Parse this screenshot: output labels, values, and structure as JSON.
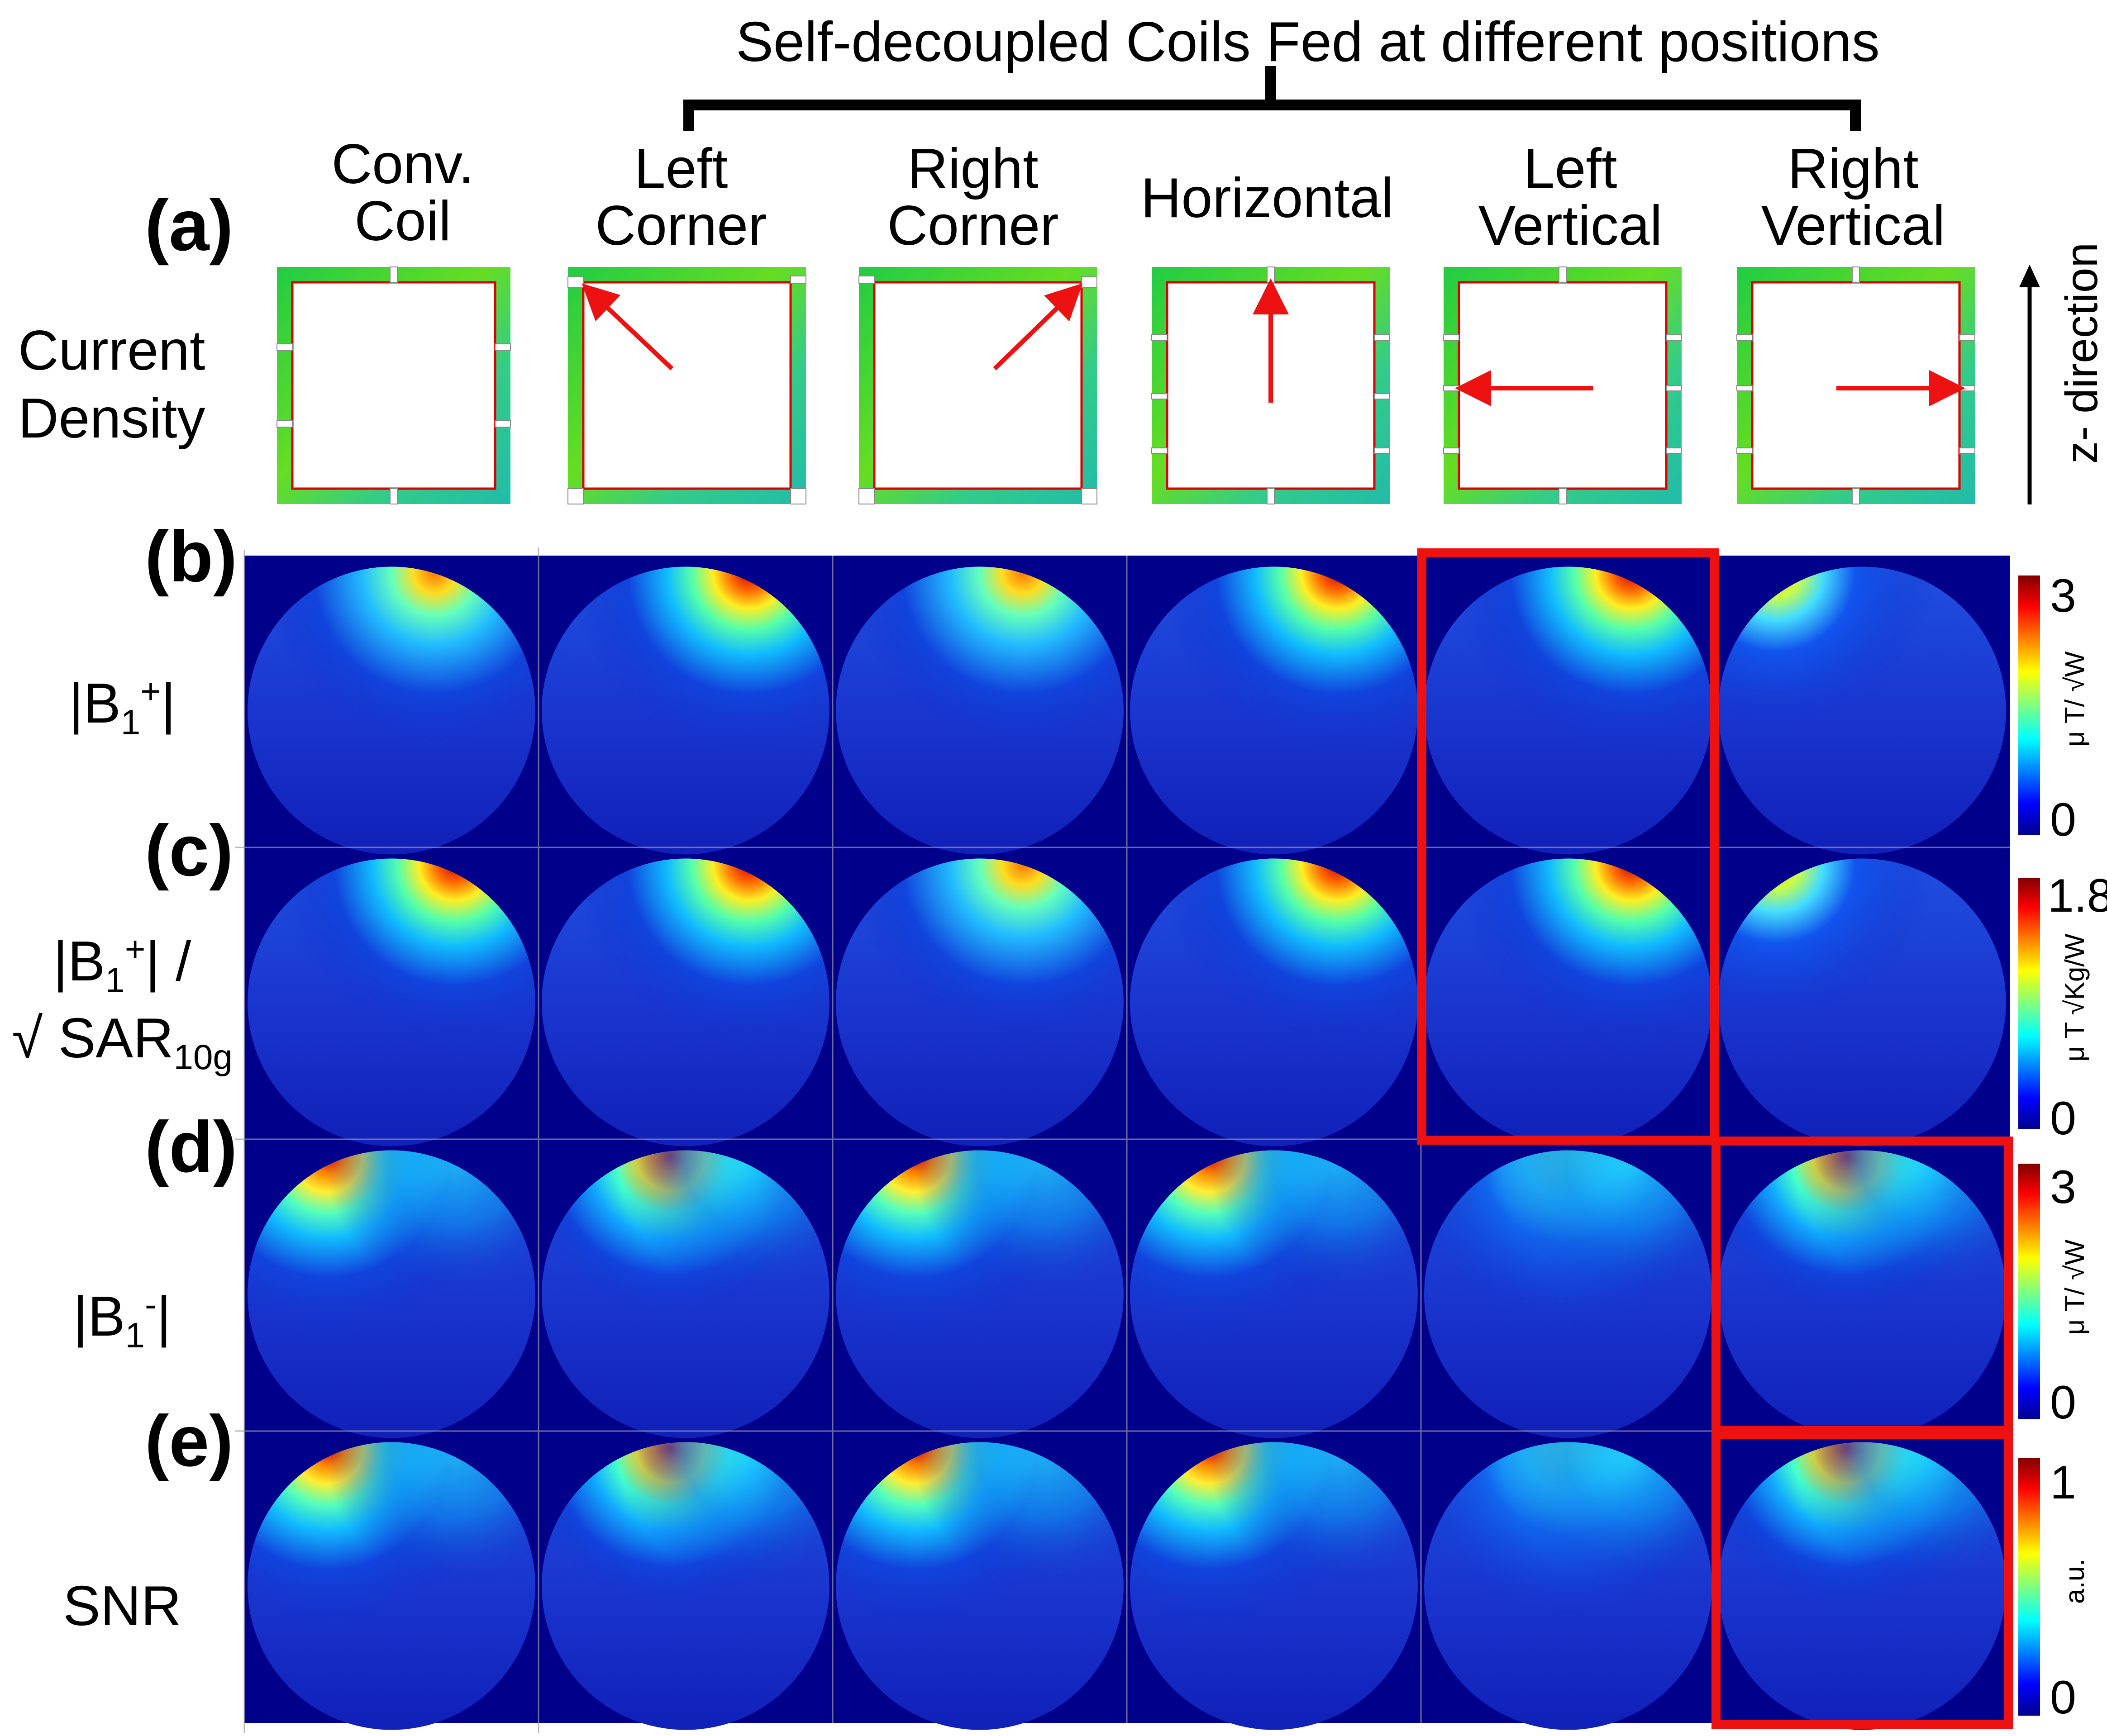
{
  "figure": {
    "top_title": "Self-decoupled Coils Fed at different positions",
    "columns": [
      {
        "line1": "Conv.",
        "line2": "Coil"
      },
      {
        "line1": "Left",
        "line2": "Corner"
      },
      {
        "line1": "Right",
        "line2": "Corner"
      },
      {
        "line1": "Horizontal",
        "line2": ""
      },
      {
        "line1": "Left",
        "line2": "Vertical"
      },
      {
        "line1": "Right",
        "line2": "Vertical"
      }
    ],
    "panel_labels": [
      "(a)",
      "(b)",
      "(c)",
      "(d)",
      "(e)"
    ],
    "row_labels": {
      "a_line1": "Current",
      "a_line2": "Density",
      "b_prefix": "|B",
      "b_sub": "1",
      "b_sup": "+",
      "b_suffix": "|",
      "c_line1_prefix": "|B",
      "c_line1_sub": "1",
      "c_line1_sup": "+",
      "c_line1_suffix": "| /",
      "c_line2_prefix": "√ SAR",
      "c_line2_sub": "10g",
      "d_prefix": "|B",
      "d_sub": "1",
      "d_sup": "-",
      "d_suffix": "|",
      "e": "SNR"
    },
    "z_direction_label": "z- direction",
    "colorbars": [
      {
        "max": "3",
        "min": "0",
        "unit": "μ T/ √W"
      },
      {
        "max": "1.8",
        "min": "0",
        "unit": "μ T √Kg/W"
      },
      {
        "max": "3",
        "min": "0",
        "unit": "μ T/ √W"
      },
      {
        "max": "1",
        "min": "0",
        "unit": "a.u."
      }
    ],
    "colors": {
      "map_bg": "#00008b",
      "highlight": "#ee1111",
      "arrow": "#ee1111",
      "trace_red": "#dd0000",
      "trace_green": "#22cc44"
    },
    "highlighted": [
      {
        "rows": "b-c",
        "column": "Left Vertical"
      },
      {
        "rows": "d",
        "column": "Right Vertical"
      },
      {
        "rows": "e",
        "column": "Right Vertical"
      }
    ]
  }
}
